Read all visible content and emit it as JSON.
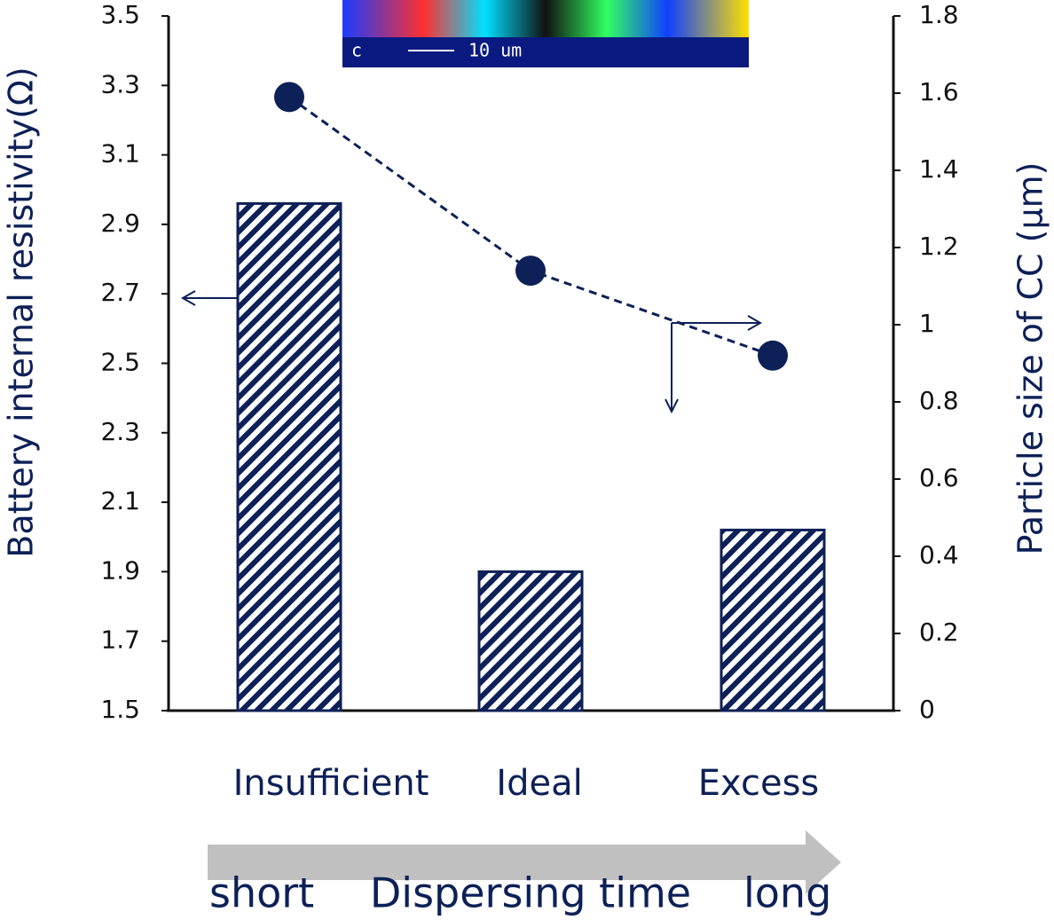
{
  "chart_data": {
    "type": "bar-line",
    "categories": [
      "Insufficient",
      "Ideal",
      "Excess"
    ],
    "series": [
      {
        "name": "Battery internal resistivity",
        "type": "bar",
        "color": "#0d2057",
        "values": [
          2.96,
          1.9,
          2.02
        ]
      },
      {
        "name": "Particle size of CC",
        "type": "line",
        "axis": "y2",
        "color": "#0d2057",
        "values": [
          1.59,
          1.14,
          0.92
        ]
      }
    ],
    "ylabel": "Battery internal resistivity(Ω)",
    "y2label": "Particle size of CC (μm)",
    "ylim": [
      1.5,
      3.5
    ],
    "yticks": [
      1.5,
      1.7,
      1.9,
      2.1,
      2.3,
      2.5,
      2.7,
      2.9,
      3.1,
      3.3,
      3.5
    ],
    "y2lim": [
      0,
      1.8
    ],
    "y2ticks": [
      0,
      0.2,
      0.4,
      0.6,
      0.8,
      1,
      1.2,
      1.4,
      1.6,
      1.8
    ],
    "xlabel": "Dispersing time",
    "annotations": [
      "short",
      "long"
    ],
    "inset_labels": [
      "c",
      "10 um"
    ]
  }
}
